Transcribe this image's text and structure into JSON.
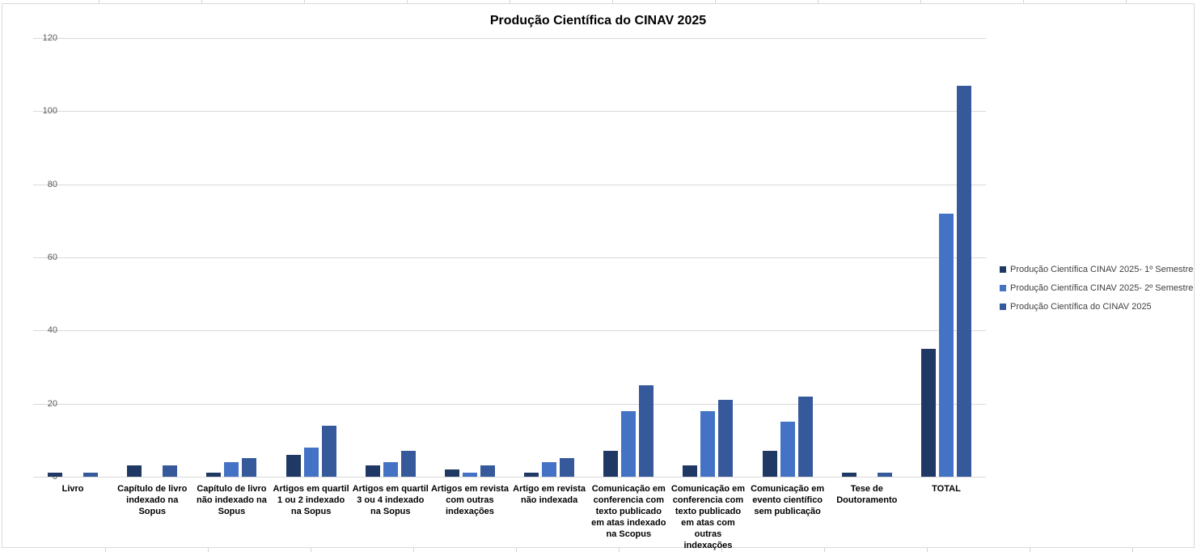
{
  "chart_data": {
    "type": "bar",
    "title": "Produção Científica do CINAV 2025",
    "categories": [
      "Livro",
      "Capítulo de livro indexado na Sopus",
      "Capítulo de livro não indexado na Sopus",
      "Artigos em quartil 1 ou 2 indexado na Sopus",
      "Artigos em quartil 3 ou 4 indexado na Sopus",
      "Artigos em revista com outras indexações",
      "Artigo em revista não indexada",
      "Comunicação em conferencia com texto publicado em atas indexado na Scopus",
      "Comunicação em conferencia com texto publicado em atas com outras indexações",
      "Comunicação em evento científico sem publicação",
      "Tese de Doutoramento",
      "TOTAL"
    ],
    "series": [
      {
        "name": "Produção Científica CINAV 2025- 1º Semestre",
        "color": "#1F3864",
        "values": [
          1,
          3,
          1,
          6,
          3,
          2,
          1,
          7,
          3,
          7,
          1,
          35
        ]
      },
      {
        "name": "Produção Científica CINAV 2025- 2º Semestre",
        "color": "#4472C4",
        "values": [
          0,
          0,
          4,
          8,
          4,
          1,
          4,
          18,
          18,
          15,
          0,
          72
        ]
      },
      {
        "name": "Produção Científica do  CINAV 2025",
        "color": "#35599B",
        "values": [
          1,
          3,
          5,
          14,
          7,
          3,
          5,
          25,
          21,
          22,
          1,
          107
        ]
      }
    ],
    "ylabel": "",
    "xlabel": "",
    "ylim": [
      0,
      120
    ],
    "ytick_step": 20,
    "grid": true,
    "legend_position": "right",
    "colors": {
      "gridline": "#D9D9D9",
      "axis_tick_text": "#595959",
      "category_text": "#000000",
      "legend_text": "#404040",
      "title_text": "#000000"
    }
  }
}
